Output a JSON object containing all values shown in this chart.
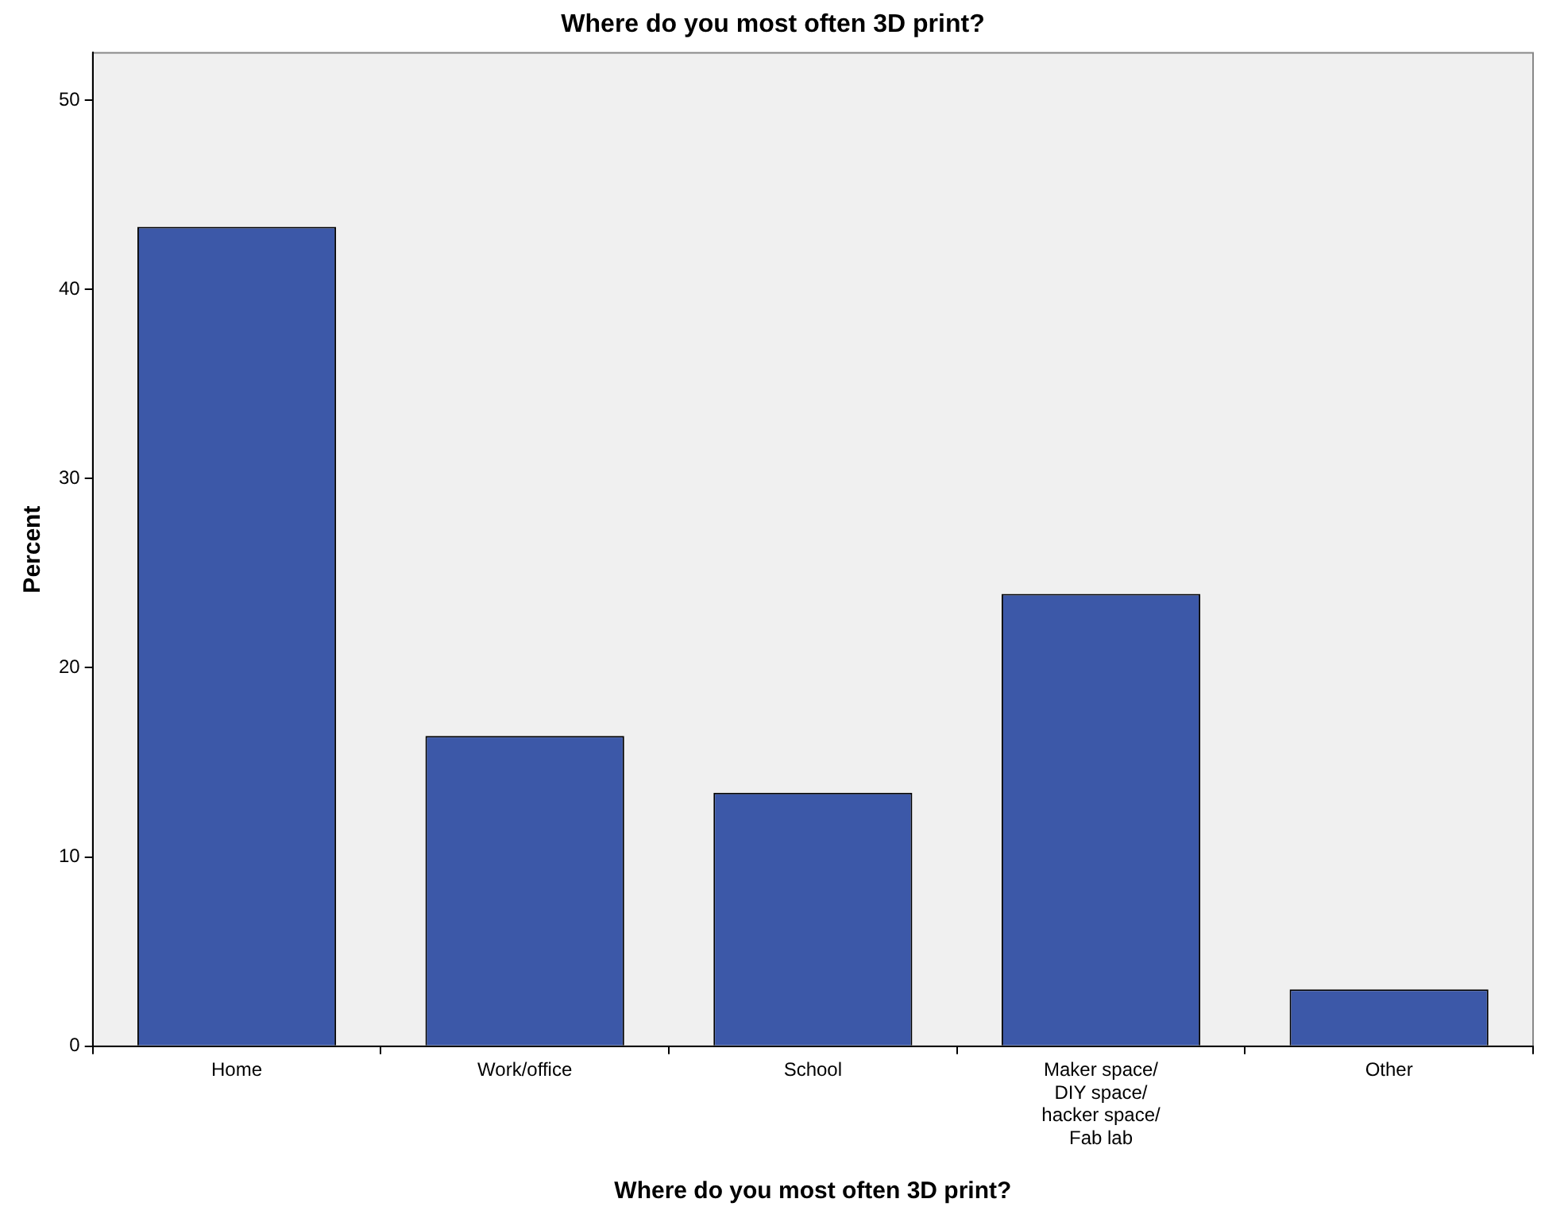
{
  "chart_data": {
    "type": "bar",
    "title": "Where do you most often 3D print?",
    "xlabel": "Where do you most often 3D print?",
    "ylabel": "Percent",
    "categories": [
      "Home",
      "Work/office",
      "School",
      "Maker space/ DIY space/ hacker space/ Fab lab",
      "Other"
    ],
    "values": [
      43.3,
      16.4,
      13.4,
      23.9,
      3.0
    ],
    "color": "#3c58a8",
    "ylim": [
      0,
      52.5
    ],
    "yticks": [
      0,
      10,
      20,
      30,
      40,
      50
    ],
    "grid": false,
    "legend": false
  }
}
